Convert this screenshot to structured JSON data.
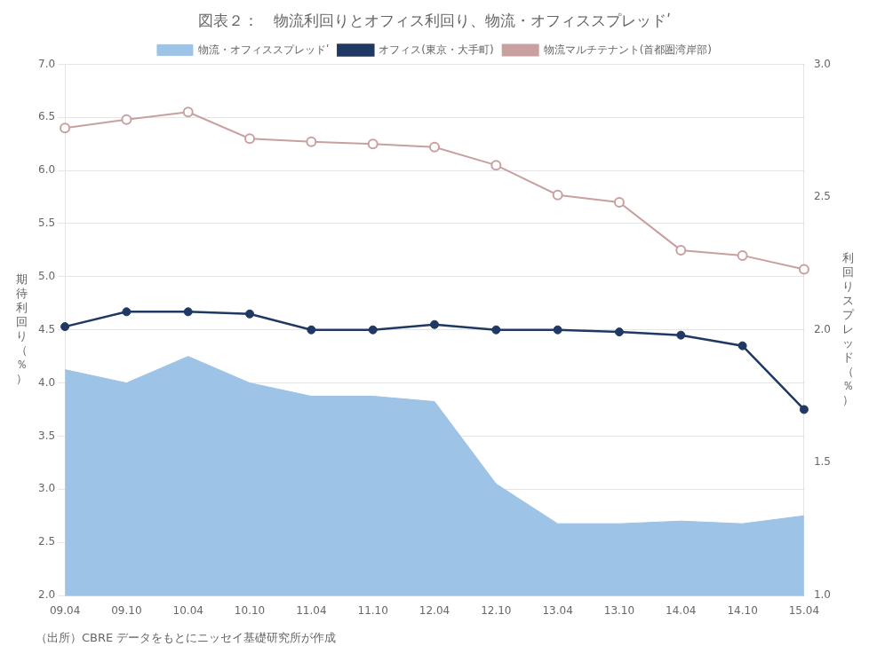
{
  "chart_data": {
    "type": "line",
    "title": "図表２：　物流利回りとオフィス利回り、物流・オフィススプレッドʹ",
    "annotations": [
      "（出所）CBRE データをもとにニッセイ基礎研究所が作成"
    ],
    "ylabel": "期\n待\n利\n回\nり\n（\n％\n）",
    "y2label": "利\n回\nり\nス\nプ\nレ\nッ\nド\n（\n％\n）",
    "categories": [
      "09.04",
      "09.10",
      "10.04",
      "10.10",
      "11.04",
      "11.10",
      "12.04",
      "12.10",
      "13.04",
      "13.10",
      "14.04",
      "14.10",
      "15.04"
    ],
    "series": [
      {
        "name": "物流・オフィススプレッドʹ",
        "type": "area",
        "axis": "y2",
        "color": "#9dc3e6",
        "values": [
          1.85,
          1.8,
          1.9,
          1.8,
          1.75,
          1.75,
          1.73,
          1.42,
          1.27,
          1.27,
          1.28,
          1.27,
          1.3
        ]
      },
      {
        "name": "オフィス(東京・大手町)",
        "type": "line",
        "color": "#1f3864",
        "marker": "circle",
        "values": [
          4.53,
          4.67,
          4.67,
          4.65,
          4.5,
          4.5,
          4.55,
          4.5,
          4.5,
          4.48,
          4.45,
          4.35,
          3.75
        ]
      },
      {
        "name": "物流マルチテナント(首都圏湾岸部)",
        "type": "line",
        "color": "#c9a0a0",
        "marker": "open_circle",
        "values": [
          6.4,
          6.48,
          6.55,
          6.3,
          6.27,
          6.25,
          6.22,
          6.05,
          5.77,
          5.7,
          5.25,
          5.2,
          5.07
        ]
      }
    ],
    "ylim": [
      2.0,
      7.0
    ],
    "yticks": [
      {
        "value": 2.0,
        "label": "2.0"
      },
      2.5,
      {
        "value": 3.0,
        "label": "3.0"
      },
      3.5,
      {
        "value": 4.0,
        "label": "4.0"
      },
      4.5,
      {
        "value": 5.0,
        "label": "5.0"
      },
      5.5,
      {
        "value": 6.0,
        "label": "6.0"
      },
      6.5,
      {
        "value": 7.0,
        "label": "7.0"
      }
    ],
    "y2lim": [
      1.0,
      3.0
    ],
    "y2ticks": [
      {
        "value": 1.0,
        "label": "1.0"
      },
      1.5,
      {
        "value": 2.0,
        "label": "2.0"
      },
      2.5,
      {
        "value": 3.0,
        "label": "3.0"
      }
    ],
    "grid": true,
    "legend": "top"
  }
}
